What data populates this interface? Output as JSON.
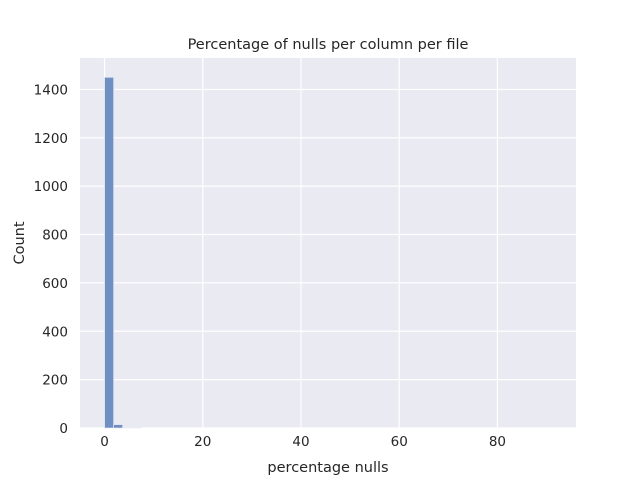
{
  "chart_data": {
    "type": "histogram",
    "title": "Percentage of nulls per column per file",
    "xlabel": "percentage nulls",
    "ylabel": "Count",
    "xlim": [
      -5,
      96
    ],
    "ylim": [
      0,
      1530
    ],
    "xticks": [
      0,
      20,
      40,
      60,
      80
    ],
    "yticks": [
      0,
      200,
      400,
      600,
      800,
      1000,
      1200,
      1400
    ],
    "bin_width": 1.84,
    "bins": [
      {
        "x0": 0.0,
        "x1": 1.84,
        "count": 1450
      },
      {
        "x0": 1.84,
        "x1": 3.68,
        "count": 14
      },
      {
        "x0": 3.68,
        "x1": 5.52,
        "count": 2
      },
      {
        "x0": 5.52,
        "x1": 7.36,
        "count": 1
      }
    ],
    "grid": true,
    "colors": {
      "background": "#eaeaf2",
      "grid": "#ffffff",
      "bar": "#6f8ec2",
      "bar_edge": "#eaeaf2",
      "text": "#262626"
    }
  }
}
